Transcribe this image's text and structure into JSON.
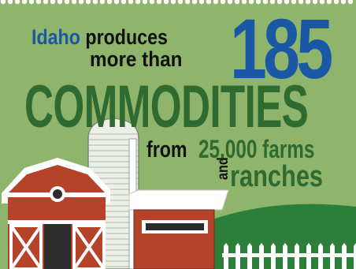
{
  "headline": {
    "state": "Idaho",
    "verb": "produces",
    "qualifier": "more than",
    "number": "185",
    "noun": "COMMODITIES"
  },
  "subline": {
    "from": "from",
    "farms": "25,000 farms",
    "and": "and",
    "ranches": "ranches"
  },
  "colors": {
    "background": "#8fb46c",
    "blue": "#1a58a6",
    "dark_green": "#2f6b30",
    "barn_red": "#b5432a",
    "silo": "#ecefe8",
    "hill": "#2c7f3b",
    "fence": "#ffffff"
  },
  "illustration": {
    "barn": "red-barn-icon",
    "silo": "grain-silo-icon",
    "shed": "red-shed-icon",
    "hill": "green-hill",
    "fence": "white-picket-fence-icon"
  }
}
